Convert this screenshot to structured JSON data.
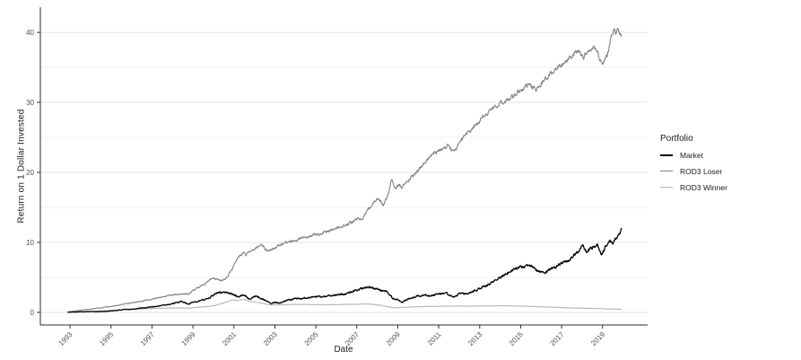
{
  "figure": {
    "background": "#ffffff"
  },
  "chart_data": {
    "type": "line",
    "title": "",
    "xlabel": "Date",
    "ylabel": "Return on 1 Dollar Invested",
    "legend_title": "Portfolio",
    "legend_position": "right",
    "grid": "horizontal-major-and-minor",
    "xlim": [
      1991.55,
      2021.2
    ],
    "ylim": [
      -1.8,
      43.6
    ],
    "x_ticks": [
      "1993",
      "1995",
      "1997",
      "1999",
      "2001",
      "2003",
      "2005",
      "2007",
      "2009",
      "2011",
      "2013",
      "2015",
      "2017",
      "2019"
    ],
    "x_tick_years": [
      1993,
      1995,
      1997,
      1999,
      2001,
      2003,
      2005,
      2007,
      2009,
      2011,
      2013,
      2015,
      2017,
      2019
    ],
    "y_ticks_major": [
      0,
      10,
      20,
      30,
      40
    ],
    "y_ticks_minor": [
      5,
      15,
      25,
      35
    ],
    "style": {
      "grid_major_color": "#e4e4e4",
      "grid_minor_color": "#f2f2f2",
      "axis_line_color": "#2e2e2e",
      "tick_label_color": "#4d4d4d",
      "axis_title_color": "#1a1a1a"
    },
    "series": [
      {
        "name": "Market",
        "color": "#000000",
        "width": 1.3,
        "noise": 0.16,
        "points": [
          [
            1992.9,
            0.02
          ],
          [
            1993.2,
            0.06
          ],
          [
            1993.6,
            0.1
          ],
          [
            1994.0,
            0.12
          ],
          [
            1994.4,
            0.1
          ],
          [
            1994.8,
            0.15
          ],
          [
            1995.3,
            0.3
          ],
          [
            1995.8,
            0.42
          ],
          [
            1996.2,
            0.52
          ],
          [
            1996.6,
            0.62
          ],
          [
            1997.0,
            0.8
          ],
          [
            1997.4,
            0.95
          ],
          [
            1997.7,
            1.1
          ],
          [
            1998.0,
            1.25
          ],
          [
            1998.3,
            1.45
          ],
          [
            1998.55,
            1.5
          ],
          [
            1998.75,
            1.15
          ],
          [
            1999.0,
            1.5
          ],
          [
            1999.4,
            1.7
          ],
          [
            1999.8,
            2.1
          ],
          [
            2000.0,
            2.5
          ],
          [
            2000.25,
            2.95
          ],
          [
            2000.5,
            2.8
          ],
          [
            2000.7,
            2.9
          ],
          [
            2000.9,
            2.65
          ],
          [
            2001.2,
            2.2
          ],
          [
            2001.5,
            2.5
          ],
          [
            2001.75,
            1.95
          ],
          [
            2002.0,
            2.3
          ],
          [
            2002.3,
            2.1
          ],
          [
            2002.6,
            1.6
          ],
          [
            2002.8,
            1.3
          ],
          [
            2003.0,
            1.5
          ],
          [
            2003.2,
            1.35
          ],
          [
            2003.6,
            1.7
          ],
          [
            2004.0,
            1.95
          ],
          [
            2004.5,
            2.05
          ],
          [
            2005.0,
            2.2
          ],
          [
            2005.5,
            2.3
          ],
          [
            2006.0,
            2.5
          ],
          [
            2006.5,
            2.65
          ],
          [
            2007.0,
            3.2
          ],
          [
            2007.6,
            3.6
          ],
          [
            2007.9,
            3.4
          ],
          [
            2008.2,
            3.1
          ],
          [
            2008.5,
            2.9
          ],
          [
            2008.75,
            2.0
          ],
          [
            2009.0,
            1.85
          ],
          [
            2009.2,
            1.45
          ],
          [
            2009.4,
            1.7
          ],
          [
            2009.7,
            2.1
          ],
          [
            2010.0,
            2.35
          ],
          [
            2010.35,
            2.55
          ],
          [
            2010.55,
            2.3
          ],
          [
            2011.0,
            2.65
          ],
          [
            2011.35,
            2.75
          ],
          [
            2011.7,
            2.15
          ],
          [
            2012.0,
            2.6
          ],
          [
            2012.5,
            2.8
          ],
          [
            2013.0,
            3.4
          ],
          [
            2013.5,
            4.1
          ],
          [
            2014.1,
            5.2
          ],
          [
            2014.7,
            6.3
          ],
          [
            2015.3,
            6.6
          ],
          [
            2015.6,
            6.5
          ],
          [
            2015.85,
            5.8
          ],
          [
            2016.15,
            5.6
          ],
          [
            2016.5,
            6.2
          ],
          [
            2016.9,
            6.8
          ],
          [
            2017.4,
            7.6
          ],
          [
            2017.8,
            8.7
          ],
          [
            2018.05,
            9.6
          ],
          [
            2018.2,
            8.6
          ],
          [
            2018.5,
            9.3
          ],
          [
            2018.75,
            9.7
          ],
          [
            2018.95,
            8.2
          ],
          [
            2019.15,
            9.5
          ],
          [
            2019.35,
            10.2
          ],
          [
            2019.5,
            9.9
          ],
          [
            2019.65,
            10.6
          ],
          [
            2019.8,
            11.2
          ],
          [
            2019.92,
            11.8
          ]
        ]
      },
      {
        "name": "ROD3 Loser",
        "color": "#7f7f7f",
        "width": 1.1,
        "noise": 0.11,
        "points": [
          [
            1992.9,
            0.05
          ],
          [
            1993.3,
            0.22
          ],
          [
            1993.7,
            0.38
          ],
          [
            1994.1,
            0.5
          ],
          [
            1994.5,
            0.65
          ],
          [
            1995.0,
            0.85
          ],
          [
            1995.5,
            1.1
          ],
          [
            1996.0,
            1.35
          ],
          [
            1996.5,
            1.6
          ],
          [
            1997.0,
            1.9
          ],
          [
            1997.5,
            2.2
          ],
          [
            1998.0,
            2.5
          ],
          [
            1998.6,
            2.7
          ],
          [
            1998.8,
            2.6
          ],
          [
            1999.0,
            3.1
          ],
          [
            1999.5,
            3.9
          ],
          [
            1999.9,
            4.9
          ],
          [
            2000.2,
            4.7
          ],
          [
            2000.45,
            4.5
          ],
          [
            2000.7,
            5.2
          ],
          [
            2001.0,
            6.6
          ],
          [
            2001.2,
            7.9
          ],
          [
            2001.45,
            8.5
          ],
          [
            2001.6,
            8.2
          ],
          [
            2001.9,
            8.9
          ],
          [
            2002.15,
            9.3
          ],
          [
            2002.4,
            9.6
          ],
          [
            2002.65,
            8.7
          ],
          [
            2002.9,
            9.1
          ],
          [
            2003.2,
            9.6
          ],
          [
            2003.6,
            10.0
          ],
          [
            2004.1,
            10.4
          ],
          [
            2004.7,
            10.9
          ],
          [
            2005.2,
            11.2
          ],
          [
            2005.7,
            11.7
          ],
          [
            2006.2,
            12.2
          ],
          [
            2006.7,
            12.8
          ],
          [
            2007.0,
            13.2
          ],
          [
            2007.3,
            13.6
          ],
          [
            2007.7,
            15.3
          ],
          [
            2008.0,
            16.4
          ],
          [
            2008.3,
            15.4
          ],
          [
            2008.55,
            17.0
          ],
          [
            2008.7,
            19.1
          ],
          [
            2008.8,
            18.0
          ],
          [
            2008.9,
            17.6
          ],
          [
            2009.05,
            18.3
          ],
          [
            2009.2,
            17.9
          ],
          [
            2009.4,
            18.6
          ],
          [
            2009.7,
            19.4
          ],
          [
            2010.0,
            20.3
          ],
          [
            2010.3,
            21.3
          ],
          [
            2010.8,
            22.8
          ],
          [
            2011.2,
            23.3
          ],
          [
            2011.45,
            23.8
          ],
          [
            2011.7,
            22.9
          ],
          [
            2012.0,
            24.2
          ],
          [
            2012.4,
            25.5
          ],
          [
            2012.8,
            26.8
          ],
          [
            2013.2,
            28.0
          ],
          [
            2013.7,
            29.2
          ],
          [
            2014.1,
            30.0
          ],
          [
            2014.5,
            30.6
          ],
          [
            2015.0,
            31.8
          ],
          [
            2015.4,
            32.4
          ],
          [
            2015.8,
            31.9
          ],
          [
            2016.1,
            33.0
          ],
          [
            2016.4,
            34.0
          ],
          [
            2016.7,
            34.6
          ],
          [
            2017.0,
            35.3
          ],
          [
            2017.4,
            36.3
          ],
          [
            2017.8,
            37.5
          ],
          [
            2018.05,
            36.3
          ],
          [
            2018.3,
            37.2
          ],
          [
            2018.55,
            38.0
          ],
          [
            2018.75,
            37.0
          ],
          [
            2018.95,
            35.5
          ],
          [
            2019.1,
            36.2
          ],
          [
            2019.25,
            36.8
          ],
          [
            2019.4,
            39.0
          ],
          [
            2019.55,
            40.6
          ],
          [
            2019.65,
            39.9
          ],
          [
            2019.75,
            40.3
          ],
          [
            2019.92,
            39.6
          ]
        ]
      },
      {
        "name": "ROD3 Winner",
        "color": "#b4b4b4",
        "width": 1.1,
        "noise": 0.045,
        "points": [
          [
            1992.9,
            0.02
          ],
          [
            1993.4,
            0.08
          ],
          [
            1994.0,
            0.15
          ],
          [
            1994.6,
            0.22
          ],
          [
            1995.2,
            0.32
          ],
          [
            1996.0,
            0.45
          ],
          [
            1997.0,
            0.55
          ],
          [
            1998.0,
            0.65
          ],
          [
            1998.8,
            0.6
          ],
          [
            1999.2,
            0.72
          ],
          [
            1999.6,
            0.8
          ],
          [
            2000.0,
            0.95
          ],
          [
            2000.5,
            1.35
          ],
          [
            2000.9,
            1.8
          ],
          [
            2001.2,
            1.7
          ],
          [
            2001.45,
            1.85
          ],
          [
            2001.8,
            1.55
          ],
          [
            2002.2,
            1.4
          ],
          [
            2002.7,
            1.1
          ],
          [
            2003.2,
            1.05
          ],
          [
            2004.0,
            1.15
          ],
          [
            2005.0,
            1.1
          ],
          [
            2006.0,
            1.1
          ],
          [
            2007.0,
            1.15
          ],
          [
            2007.6,
            1.2
          ],
          [
            2008.2,
            1.0
          ],
          [
            2008.8,
            0.65
          ],
          [
            2009.2,
            0.7
          ],
          [
            2009.8,
            0.8
          ],
          [
            2010.5,
            0.85
          ],
          [
            2011.5,
            0.9
          ],
          [
            2012.5,
            0.9
          ],
          [
            2013.2,
            0.92
          ],
          [
            2014.0,
            0.95
          ],
          [
            2015.0,
            0.9
          ],
          [
            2016.0,
            0.8
          ],
          [
            2017.0,
            0.68
          ],
          [
            2018.0,
            0.6
          ],
          [
            2018.8,
            0.55
          ],
          [
            2019.3,
            0.5
          ],
          [
            2019.92,
            0.45
          ]
        ]
      }
    ]
  }
}
